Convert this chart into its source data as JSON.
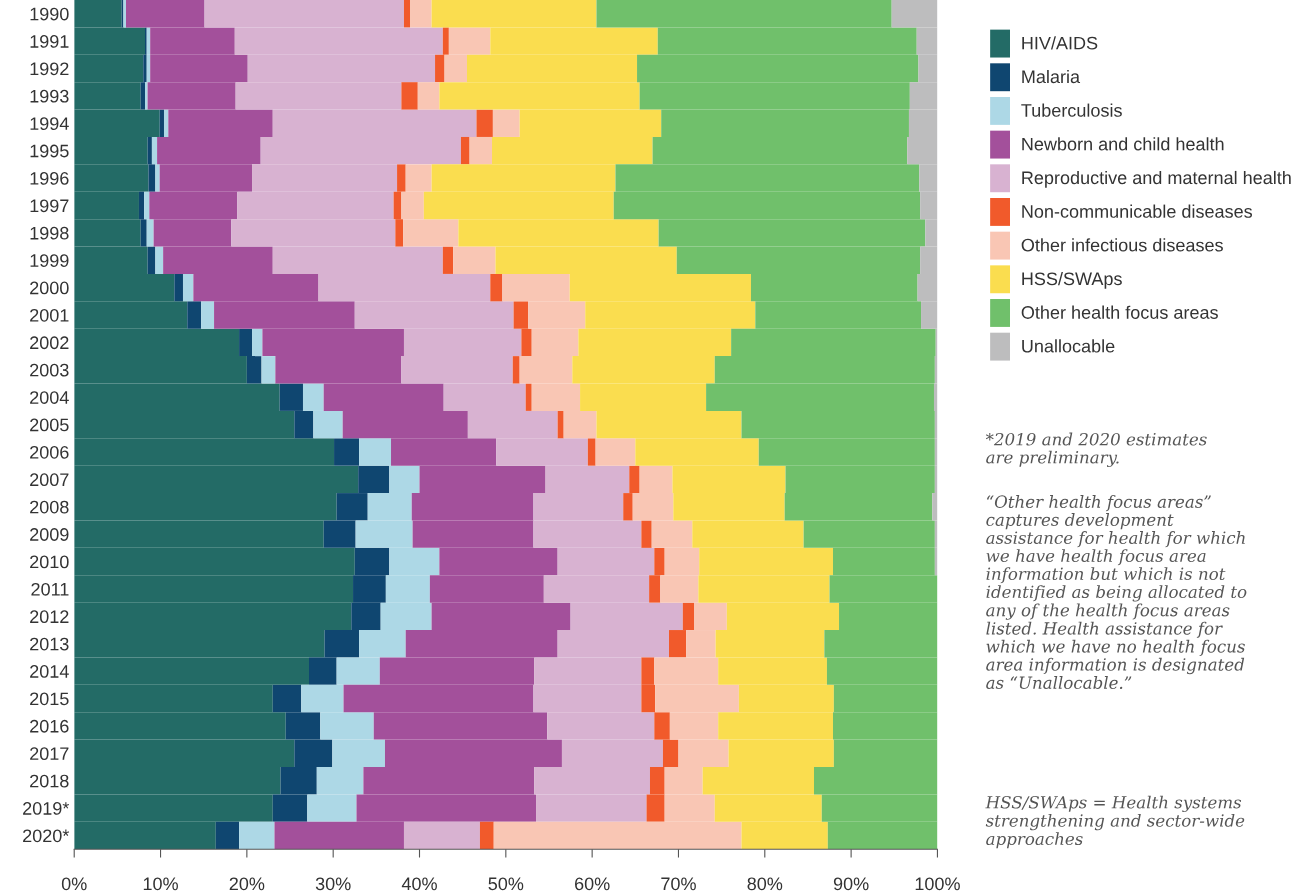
{
  "chart_data": {
    "type": "bar",
    "orientation": "horizontal",
    "stacked": true,
    "categories": [
      "1990",
      "1991",
      "1992",
      "1993",
      "1994",
      "1995",
      "1996",
      "1997",
      "1998",
      "1999",
      "2000",
      "2001",
      "2002",
      "2003",
      "2004",
      "2005",
      "2006",
      "2007",
      "2008",
      "2009",
      "2010",
      "2011",
      "2012",
      "2013",
      "2014",
      "2015",
      "2016",
      "2017",
      "2018",
      "2019*",
      "2020*"
    ],
    "series": [
      {
        "name": "HIV/AIDS",
        "color": "#236b66",
        "values": [
          5.5,
          8.2,
          8.0,
          7.7,
          9.9,
          8.5,
          8.6,
          7.5,
          7.7,
          8.5,
          11.6,
          13.1,
          19.1,
          20.0,
          23.8,
          25.5,
          30.1,
          32.9,
          30.4,
          28.9,
          32.5,
          32.3,
          32.1,
          29.0,
          27.2,
          23.0,
          24.5,
          25.5,
          23.9,
          23.0,
          16.4
        ]
      },
      {
        "name": "Malaria",
        "color": "#0f4670",
        "values": [
          0.2,
          0.2,
          0.4,
          0.5,
          0.5,
          0.5,
          0.8,
          0.6,
          0.7,
          0.9,
          1.0,
          1.6,
          1.5,
          1.7,
          2.7,
          2.2,
          2.9,
          3.6,
          3.6,
          3.7,
          4.0,
          3.8,
          3.4,
          4.0,
          3.2,
          3.3,
          4.0,
          4.4,
          4.2,
          4.0,
          2.7
        ]
      },
      {
        "name": "Tuberculosis",
        "color": "#add8e6",
        "values": [
          0.3,
          0.4,
          0.4,
          0.3,
          0.5,
          0.6,
          0.5,
          0.6,
          0.8,
          0.9,
          1.2,
          1.5,
          1.2,
          1.6,
          2.4,
          3.4,
          3.7,
          3.5,
          5.1,
          6.6,
          5.8,
          5.1,
          5.9,
          5.4,
          5.0,
          4.9,
          6.2,
          6.1,
          5.4,
          5.7,
          4.1
        ]
      },
      {
        "name": "Newborn and child health",
        "color": "#a3509b",
        "values": [
          9.1,
          9.8,
          11.3,
          10.2,
          12.1,
          12.0,
          10.7,
          10.2,
          9.0,
          12.7,
          14.5,
          16.3,
          16.4,
          14.6,
          13.9,
          14.5,
          12.2,
          14.6,
          14.1,
          14.0,
          13.7,
          13.2,
          16.1,
          17.6,
          17.9,
          22.0,
          20.1,
          20.5,
          19.8,
          20.8,
          15.0
        ]
      },
      {
        "name": "Reproductive and maternal health",
        "color": "#d8b2d1",
        "values": [
          23.1,
          24.1,
          21.7,
          19.2,
          23.6,
          23.2,
          16.8,
          18.1,
          19.0,
          19.7,
          19.9,
          18.4,
          13.6,
          12.9,
          9.5,
          10.4,
          10.6,
          9.7,
          10.4,
          12.5,
          11.2,
          12.2,
          13.0,
          12.9,
          12.4,
          12.5,
          12.4,
          11.7,
          13.4,
          12.8,
          8.8
        ]
      },
      {
        "name": "Non-communicable diseases",
        "color": "#f15a2b",
        "values": [
          0.7,
          0.7,
          1.1,
          1.9,
          1.9,
          1.0,
          1.0,
          0.9,
          0.9,
          1.2,
          1.4,
          1.7,
          1.2,
          0.8,
          0.7,
          0.7,
          0.9,
          1.2,
          1.1,
          1.2,
          1.2,
          1.3,
          1.3,
          2.0,
          1.5,
          1.6,
          1.8,
          1.8,
          1.7,
          2.1,
          1.6
        ]
      },
      {
        "name": "Other infectious diseases",
        "color": "#f9c6b4",
        "values": [
          2.5,
          4.8,
          2.6,
          2.5,
          3.1,
          2.6,
          3.0,
          2.6,
          6.4,
          4.9,
          7.8,
          6.6,
          5.4,
          6.1,
          5.6,
          3.8,
          4.6,
          3.8,
          4.7,
          4.7,
          4.0,
          4.4,
          3.8,
          3.4,
          7.4,
          9.7,
          5.6,
          5.8,
          4.4,
          5.8,
          28.7
        ]
      },
      {
        "name": "HSS/SWAps",
        "color": "#fadd4f",
        "values": [
          19.1,
          19.4,
          19.7,
          23.2,
          16.4,
          18.6,
          21.3,
          22.0,
          23.2,
          21.0,
          21.0,
          19.7,
          17.7,
          16.5,
          14.6,
          16.8,
          14.3,
          13.1,
          12.9,
          12.9,
          15.5,
          15.2,
          13.0,
          12.6,
          12.6,
          11.0,
          13.3,
          12.2,
          12.9,
          12.4,
          10.0
        ]
      },
      {
        "name": "Other health focus areas",
        "color": "#70c06b",
        "values": [
          34.2,
          30.0,
          32.6,
          31.3,
          28.7,
          29.5,
          35.2,
          35.5,
          30.9,
          28.2,
          19.3,
          19.2,
          23.7,
          25.5,
          26.4,
          22.4,
          20.4,
          17.3,
          17.1,
          15.2,
          11.8,
          12.5,
          11.4,
          13.1,
          12.8,
          12.0,
          12.1,
          12.0,
          14.3,
          13.4,
          12.7
        ]
      },
      {
        "name": "Unallocable",
        "color": "#bdbdbe",
        "values": [
          5.3,
          2.4,
          2.2,
          3.2,
          3.3,
          3.5,
          2.1,
          2.0,
          1.4,
          2.0,
          2.3,
          1.9,
          0.2,
          0.3,
          0.4,
          0.3,
          0.3,
          0.3,
          0.6,
          0.3,
          0.3,
          0,
          0,
          0,
          0,
          0,
          0,
          0,
          0,
          0,
          0
        ]
      }
    ],
    "xlim": [
      0,
      100
    ],
    "xticks": [
      {
        "value": 0,
        "label": "0%"
      },
      {
        "value": 10,
        "label": "10%"
      },
      {
        "value": 20,
        "label": "20%"
      },
      {
        "value": 30,
        "label": "30%"
      },
      {
        "value": 40,
        "label": "40%"
      },
      {
        "value": 50,
        "label": "50%"
      },
      {
        "value": 60,
        "label": "60%"
      },
      {
        "value": 70,
        "label": "70%"
      },
      {
        "value": 80,
        "label": "80%"
      },
      {
        "value": 90,
        "label": "90%"
      },
      {
        "value": 100,
        "label": "100%"
      }
    ],
    "grid": false,
    "legend": "top right",
    "annotations": [
      "*2019 and 2020 estimates\nare preliminary.",
      "“Other health focus areas”\ncaptures development\nassistance for health for which\nwe have health focus area\ninformation but which is not\nidentified as being allocated to\nany of the health focus areas\nlisted. Health assistance for\nwhich we have no health focus\narea information is designated\nas “Unallocable.”",
      "HSS/SWAps = Health systems\nstrengthening and sector-wide\napproaches"
    ]
  }
}
